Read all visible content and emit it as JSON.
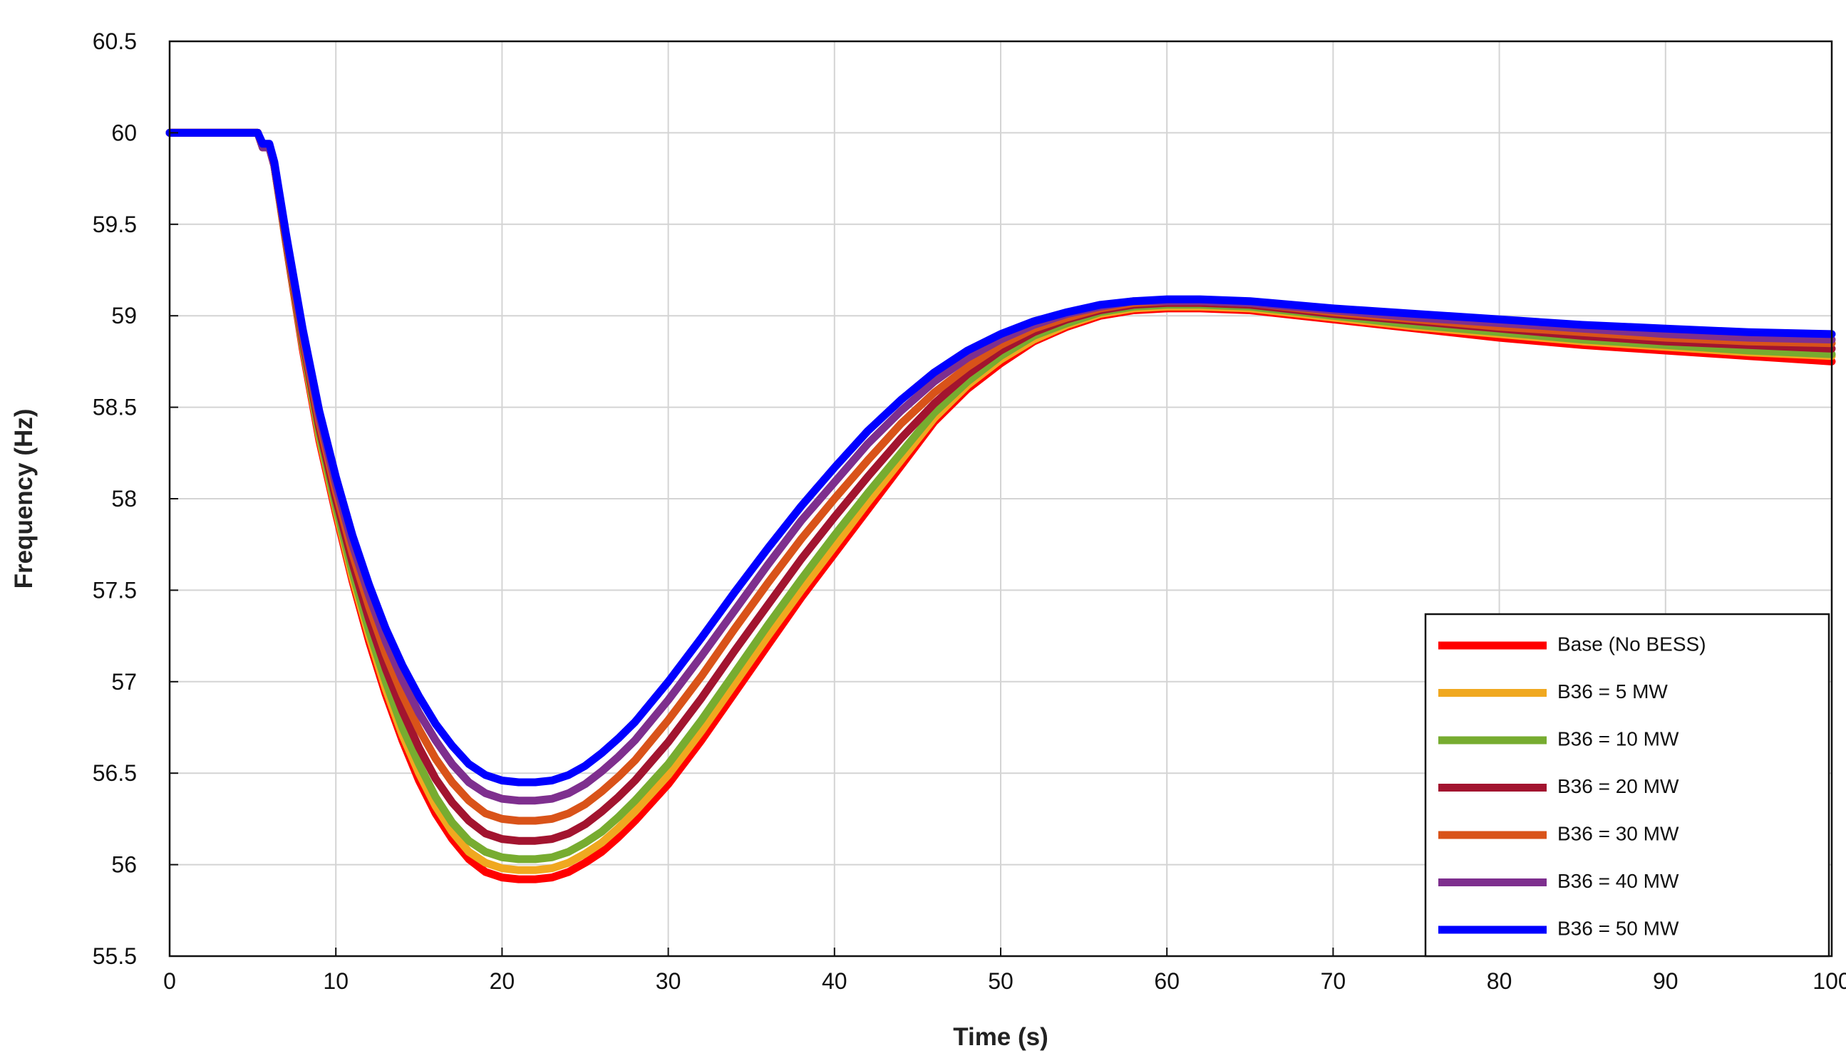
{
  "chart_data": {
    "type": "line",
    "xlabel": "Time (s)",
    "ylabel": "Frequency (Hz)",
    "xlim": [
      0,
      100
    ],
    "ylim": [
      55.5,
      60.5
    ],
    "xticks": [
      "0",
      "10",
      "20",
      "30",
      "40",
      "50",
      "60",
      "70",
      "80",
      "90",
      "100"
    ],
    "yticks": [
      "55.5",
      "56",
      "56.5",
      "57",
      "57.5",
      "58",
      "58.5",
      "59",
      "59.5",
      "60",
      "60.5"
    ],
    "grid": true,
    "legend_position": "bottom-right",
    "series": [
      {
        "name": "Base (No BESS)",
        "color": "#ff0000",
        "x": [
          0,
          5,
          5.3,
          5.6,
          6,
          6.3,
          7,
          8,
          9,
          10,
          11,
          12,
          13,
          14,
          15,
          16,
          17,
          18,
          19,
          20,
          21,
          22,
          23,
          24,
          25,
          26,
          27,
          28,
          30,
          32,
          34,
          36,
          38,
          40,
          42,
          44,
          46,
          48,
          50,
          52,
          54,
          56,
          58,
          60,
          62,
          65,
          70,
          75,
          80,
          85,
          90,
          95,
          100
        ],
        "y": [
          60,
          60,
          60,
          59.92,
          59.92,
          59.82,
          59.4,
          58.82,
          58.32,
          57.92,
          57.55,
          57.22,
          56.93,
          56.68,
          56.46,
          56.28,
          56.14,
          56.03,
          55.96,
          55.93,
          55.92,
          55.92,
          55.93,
          55.96,
          56.01,
          56.07,
          56.15,
          56.24,
          56.44,
          56.68,
          56.94,
          57.2,
          57.46,
          57.7,
          57.94,
          58.18,
          58.42,
          58.6,
          58.74,
          58.86,
          58.94,
          59,
          59.03,
          59.04,
          59.04,
          59.03,
          58.98,
          58.93,
          58.88,
          58.84,
          58.81,
          58.78,
          58.75
        ]
      },
      {
        "name": "B36 = 5 MW",
        "color": "#f0a820",
        "x": [
          0,
          5,
          5.3,
          5.6,
          6,
          6.3,
          7,
          8,
          9,
          10,
          11,
          12,
          13,
          14,
          15,
          16,
          17,
          18,
          19,
          20,
          21,
          22,
          23,
          24,
          25,
          26,
          27,
          28,
          30,
          32,
          34,
          36,
          38,
          40,
          42,
          44,
          46,
          48,
          50,
          52,
          54,
          56,
          58,
          60,
          62,
          65,
          70,
          75,
          80,
          85,
          90,
          95,
          100
        ],
        "y": [
          60,
          60,
          60,
          59.92,
          59.92,
          59.82,
          59.41,
          58.84,
          58.34,
          57.94,
          57.57,
          57.25,
          56.96,
          56.71,
          56.5,
          56.32,
          56.18,
          56.07,
          56.01,
          55.98,
          55.97,
          55.97,
          55.98,
          56.01,
          56.06,
          56.12,
          56.2,
          56.29,
          56.49,
          56.73,
          56.99,
          57.25,
          57.5,
          57.74,
          57.98,
          58.21,
          58.44,
          58.62,
          58.76,
          58.87,
          58.95,
          59.01,
          59.04,
          59.05,
          59.05,
          59.04,
          58.99,
          58.94,
          58.9,
          58.86,
          58.83,
          58.8,
          58.78
        ]
      },
      {
        "name": "B36 = 10 MW",
        "color": "#77ac30",
        "x": [
          0,
          5,
          5.3,
          5.6,
          6,
          6.3,
          7,
          8,
          9,
          10,
          11,
          12,
          13,
          14,
          15,
          16,
          17,
          18,
          19,
          20,
          21,
          22,
          23,
          24,
          25,
          26,
          27,
          28,
          30,
          32,
          34,
          36,
          38,
          40,
          42,
          44,
          46,
          48,
          50,
          52,
          54,
          56,
          58,
          60,
          62,
          65,
          70,
          75,
          80,
          85,
          90,
          95,
          100
        ],
        "y": [
          60,
          60,
          60,
          59.92,
          59.92,
          59.82,
          59.41,
          58.85,
          58.36,
          57.96,
          57.6,
          57.28,
          57,
          56.75,
          56.55,
          56.37,
          56.23,
          56.13,
          56.07,
          56.04,
          56.03,
          56.03,
          56.04,
          56.07,
          56.12,
          56.18,
          56.26,
          56.35,
          56.55,
          56.79,
          57.05,
          57.31,
          57.56,
          57.8,
          58.03,
          58.25,
          58.47,
          58.64,
          58.78,
          58.89,
          58.96,
          59.02,
          59.05,
          59.06,
          59.06,
          59.05,
          59,
          58.95,
          58.91,
          58.87,
          58.84,
          58.81,
          58.79
        ]
      },
      {
        "name": "B36 = 20 MW",
        "color": "#a2142f",
        "x": [
          0,
          5,
          5.3,
          5.6,
          6,
          6.3,
          7,
          8,
          9,
          10,
          11,
          12,
          13,
          14,
          15,
          16,
          17,
          18,
          19,
          20,
          21,
          22,
          23,
          24,
          25,
          26,
          27,
          28,
          30,
          32,
          34,
          36,
          38,
          40,
          42,
          44,
          46,
          48,
          50,
          52,
          54,
          56,
          58,
          60,
          62,
          65,
          70,
          75,
          80,
          85,
          90,
          95,
          100
        ],
        "y": [
          60,
          60,
          60,
          59.92,
          59.92,
          59.82,
          59.42,
          58.87,
          58.39,
          58,
          57.65,
          57.34,
          57.07,
          56.84,
          56.64,
          56.47,
          56.34,
          56.24,
          56.17,
          56.14,
          56.13,
          56.13,
          56.14,
          56.17,
          56.22,
          56.29,
          56.37,
          56.46,
          56.67,
          56.91,
          57.17,
          57.42,
          57.67,
          57.9,
          58.12,
          58.33,
          58.52,
          58.68,
          58.81,
          58.91,
          58.98,
          59.03,
          59.06,
          59.07,
          59.07,
          59.06,
          59.01,
          58.97,
          58.93,
          58.89,
          58.86,
          58.84,
          58.82
        ]
      },
      {
        "name": "B36 = 30 MW",
        "color": "#d95319",
        "x": [
          0,
          5,
          5.3,
          5.6,
          6,
          6.3,
          7,
          8,
          9,
          10,
          11,
          12,
          13,
          14,
          15,
          16,
          17,
          18,
          19,
          20,
          21,
          22,
          23,
          24,
          25,
          26,
          27,
          28,
          30,
          32,
          34,
          36,
          38,
          40,
          42,
          44,
          46,
          48,
          50,
          52,
          54,
          56,
          58,
          60,
          62,
          65,
          70,
          75,
          80,
          85,
          90,
          95,
          100
        ],
        "y": [
          60,
          60,
          60,
          59.92,
          59.92,
          59.82,
          59.43,
          58.89,
          58.42,
          58.04,
          57.7,
          57.41,
          57.15,
          56.93,
          56.74,
          56.58,
          56.45,
          56.35,
          56.28,
          56.25,
          56.24,
          56.24,
          56.25,
          56.28,
          56.33,
          56.4,
          56.48,
          56.57,
          56.79,
          57.03,
          57.29,
          57.54,
          57.78,
          58,
          58.21,
          58.41,
          58.58,
          58.72,
          58.84,
          58.93,
          58.99,
          59.04,
          59.07,
          59.08,
          59.08,
          59.07,
          59.02,
          58.98,
          58.94,
          58.91,
          58.88,
          58.86,
          58.85
        ]
      },
      {
        "name": "B36 = 40 MW",
        "color": "#7e2f8e",
        "x": [
          0,
          5,
          5.3,
          5.6,
          6,
          6.3,
          7,
          8,
          9,
          10,
          11,
          12,
          13,
          14,
          15,
          16,
          17,
          18,
          19,
          20,
          21,
          22,
          23,
          24,
          25,
          26,
          27,
          28,
          30,
          32,
          34,
          36,
          38,
          40,
          42,
          44,
          46,
          48,
          50,
          52,
          54,
          56,
          58,
          60,
          62,
          65,
          70,
          75,
          80,
          85,
          90,
          95,
          100
        ],
        "y": [
          60,
          60,
          60,
          59.92,
          59.92,
          59.82,
          59.44,
          58.91,
          58.45,
          58.08,
          57.75,
          57.47,
          57.22,
          57.01,
          56.83,
          56.68,
          56.55,
          56.45,
          56.39,
          56.36,
          56.35,
          56.35,
          56.36,
          56.39,
          56.44,
          56.51,
          56.59,
          56.68,
          56.9,
          57.14,
          57.39,
          57.64,
          57.88,
          58.09,
          58.3,
          58.48,
          58.64,
          58.77,
          58.87,
          58.95,
          59.01,
          59.05,
          59.08,
          59.08,
          59.08,
          59.07,
          59.03,
          58.99,
          58.96,
          58.93,
          58.9,
          58.88,
          58.87
        ]
      },
      {
        "name": "B36 = 50 MW",
        "color": "#0000ff",
        "x": [
          0,
          5,
          5.3,
          5.6,
          6,
          6.3,
          7,
          8,
          9,
          10,
          11,
          12,
          13,
          14,
          15,
          16,
          17,
          18,
          19,
          20,
          21,
          22,
          23,
          24,
          25,
          26,
          27,
          28,
          30,
          32,
          34,
          36,
          38,
          40,
          42,
          44,
          46,
          48,
          50,
          52,
          54,
          56,
          58,
          60,
          62,
          65,
          70,
          75,
          80,
          85,
          90,
          95,
          100
        ],
        "y": [
          60,
          60,
          60,
          59.94,
          59.94,
          59.84,
          59.45,
          58.93,
          58.48,
          58.12,
          57.8,
          57.53,
          57.29,
          57.09,
          56.92,
          56.77,
          56.65,
          56.55,
          56.49,
          56.46,
          56.45,
          56.45,
          56.46,
          56.49,
          56.54,
          56.61,
          56.69,
          56.78,
          57,
          57.24,
          57.49,
          57.73,
          57.96,
          58.17,
          58.37,
          58.54,
          58.69,
          58.81,
          58.9,
          58.97,
          59.02,
          59.06,
          59.08,
          59.09,
          59.09,
          59.08,
          59.04,
          59.01,
          58.98,
          58.95,
          58.93,
          58.91,
          58.9
        ]
      }
    ]
  }
}
